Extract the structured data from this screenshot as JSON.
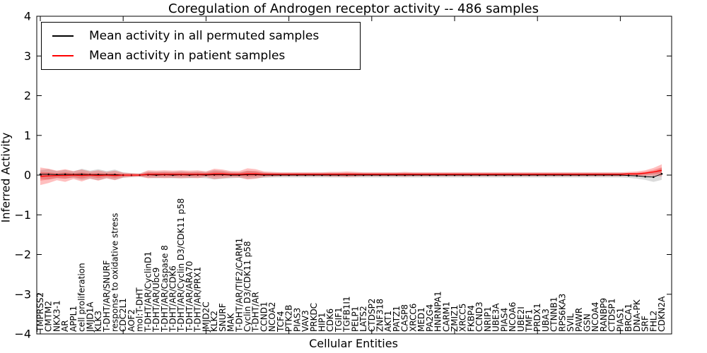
{
  "chart_data": {
    "type": "line",
    "title": "Coregulation of Androgen receptor activity -- 486 samples",
    "xlabel": "Cellular Entities",
    "ylabel": "Inferred Activity",
    "ylim": [
      -4,
      4
    ],
    "yticks": [
      4,
      3,
      2,
      1,
      0,
      -1,
      -2,
      -3,
      -4
    ],
    "x_major_tick_indices": [
      0,
      10,
      20,
      30,
      40,
      50,
      60,
      70
    ],
    "grid": false,
    "legend_position": "upper left",
    "legend": [
      {
        "label": "Mean activity in all permuted samples",
        "color": "#000000"
      },
      {
        "label": "Mean activity in patient samples",
        "color": "#ff0000"
      }
    ],
    "categories": [
      "TMPRSS2",
      "CMTM2",
      "NKX3-1",
      "AR",
      "APPL1",
      "cell proliferation",
      "JMJD1A",
      "KLK3",
      "T-DHT/AR/SNURF",
      "response to oxidative stress",
      "CDC2L1",
      "AOF2",
      "mol:T-DHT",
      "T-DHT/AR/CyclinD1",
      "T-DHT/AR/Ubc9",
      "T-DHT/AR/Caspase 8",
      "T-DHT/AR/CDK6",
      "T-DHT/AR/Cyclin D3/CDK11 p58",
      "T-DHT/AR/ARA70",
      "T-DHT/AR/PRX1",
      "JMJD2C",
      "KLK2",
      "SNURF",
      "MAK",
      "T-DHT/AR/TIF2/CARM1",
      "Cyclin D3/CDK11 p58",
      "T-DHT/AR",
      "CCND1",
      "NCOA2",
      "TCF4",
      "PTK2B",
      "PIAS3",
      "VAV3",
      "PRKDC",
      "HIP1",
      "CDK6",
      "TGIF1",
      "TGFB1I1",
      "PELP1",
      "LATS2",
      "CTDSP2",
      "ZNF318",
      "AKT1",
      "PATZ1",
      "CASP8",
      "XRCC6",
      "MED1",
      "PA2G4",
      "HNRNPA1",
      "CARM1",
      "ZMIZ1",
      "XRCC5",
      "FKBP4",
      "CCND3",
      "NRIP1",
      "UBE3A",
      "PIAS4",
      "NCOA6",
      "UBE2I",
      "TMF1",
      "PRDX1",
      "UBA3",
      "CTNNB1",
      "RPS6KA3",
      "SVIL",
      "PAWR",
      "GSN",
      "NCOA4",
      "RANBP9",
      "CTDSP1",
      "PIAS1",
      "BRCA1",
      "DNA-PK",
      "SRF",
      "FHL2",
      "CDKN2A"
    ],
    "series": [
      {
        "name": "Mean activity in all permuted samples",
        "color": "#000000",
        "band_color": "#999999",
        "band_alpha": 0.35,
        "values": [
          0.02,
          0.02,
          0.01,
          0.02,
          0.01,
          0.02,
          0.01,
          0.01,
          0.01,
          0.01,
          0,
          0,
          0,
          0.01,
          0,
          0.01,
          0,
          0.01,
          0,
          0.01,
          0,
          0.01,
          0.01,
          0,
          0,
          0.01,
          0.01,
          0,
          0,
          0,
          0,
          0,
          0,
          0,
          0,
          0,
          0,
          0,
          0,
          0,
          0,
          0,
          0,
          0,
          0,
          0,
          0,
          0,
          0,
          0,
          0,
          0,
          0,
          0,
          0,
          0,
          0,
          0,
          0,
          0,
          0,
          0,
          0,
          0,
          0,
          0,
          0,
          0,
          0,
          0,
          0,
          -0.01,
          -0.02,
          -0.04,
          -0.05,
          0.03
        ],
        "band": [
          0.11,
          0.13,
          0.09,
          0.11,
          0.08,
          0.14,
          0.1,
          0.14,
          0.09,
          0.13,
          0.07,
          0.05,
          0.04,
          0.08,
          0.08,
          0.08,
          0.08,
          0.09,
          0.08,
          0.08,
          0.08,
          0.12,
          0.1,
          0.08,
          0.07,
          0.1,
          0.09,
          0.07,
          0.06,
          0.06,
          0.06,
          0.06,
          0.06,
          0.06,
          0.06,
          0.06,
          0.06,
          0.06,
          0.06,
          0.06,
          0.06,
          0.06,
          0.06,
          0.06,
          0.06,
          0.06,
          0.06,
          0.06,
          0.06,
          0.06,
          0.06,
          0.06,
          0.06,
          0.06,
          0.06,
          0.06,
          0.06,
          0.06,
          0.06,
          0.06,
          0.06,
          0.06,
          0.06,
          0.06,
          0.06,
          0.06,
          0.06,
          0.06,
          0.06,
          0.06,
          0.06,
          0.06,
          0.07,
          0.08,
          0.12,
          0.15
        ]
      },
      {
        "name": "Mean activity in patient samples",
        "color": "#ff0000",
        "band_color": "#ff0000",
        "band_alpha": 0.25,
        "inner_band_scale": 0.5,
        "values": [
          -0.03,
          -0.02,
          -0.01,
          -0.01,
          0,
          -0.01,
          0,
          -0.01,
          0,
          -0.01,
          0,
          0,
          0,
          0.02,
          0.02,
          0.02,
          0.02,
          0.02,
          0.02,
          0.02,
          0.02,
          0.03,
          0.03,
          0.02,
          0.02,
          0.03,
          0.03,
          0.02,
          0.02,
          0.02,
          0.02,
          0.02,
          0.02,
          0.02,
          0.02,
          0.02,
          0.02,
          0.02,
          0.02,
          0.02,
          0.02,
          0.02,
          0.02,
          0.02,
          0.02,
          0.02,
          0.02,
          0.02,
          0.02,
          0.02,
          0.02,
          0.02,
          0.02,
          0.02,
          0.02,
          0.02,
          0.02,
          0.02,
          0.02,
          0.02,
          0.02,
          0.02,
          0.02,
          0.02,
          0.02,
          0.02,
          0.02,
          0.02,
          0.02,
          0.02,
          0.02,
          0.03,
          0.03,
          0.05,
          0.08,
          0.12
        ],
        "band": [
          0.22,
          0.18,
          0.12,
          0.16,
          0.1,
          0.15,
          0.09,
          0.13,
          0.08,
          0.12,
          0.06,
          0.05,
          0.04,
          0.1,
          0.09,
          0.1,
          0.09,
          0.1,
          0.09,
          0.1,
          0.07,
          0.13,
          0.11,
          0.08,
          0.08,
          0.14,
          0.12,
          0.07,
          0.06,
          0.05,
          0.05,
          0.05,
          0.05,
          0.05,
          0.05,
          0.06,
          0.06,
          0.07,
          0.06,
          0.05,
          0.05,
          0.05,
          0.05,
          0.05,
          0.06,
          0.05,
          0.05,
          0.05,
          0.05,
          0.05,
          0.05,
          0.05,
          0.05,
          0.05,
          0.05,
          0.05,
          0.05,
          0.05,
          0.05,
          0.05,
          0.05,
          0.05,
          0.05,
          0.05,
          0.05,
          0.05,
          0.05,
          0.05,
          0.05,
          0.05,
          0.05,
          0.05,
          0.06,
          0.07,
          0.1,
          0.15
        ]
      }
    ]
  }
}
